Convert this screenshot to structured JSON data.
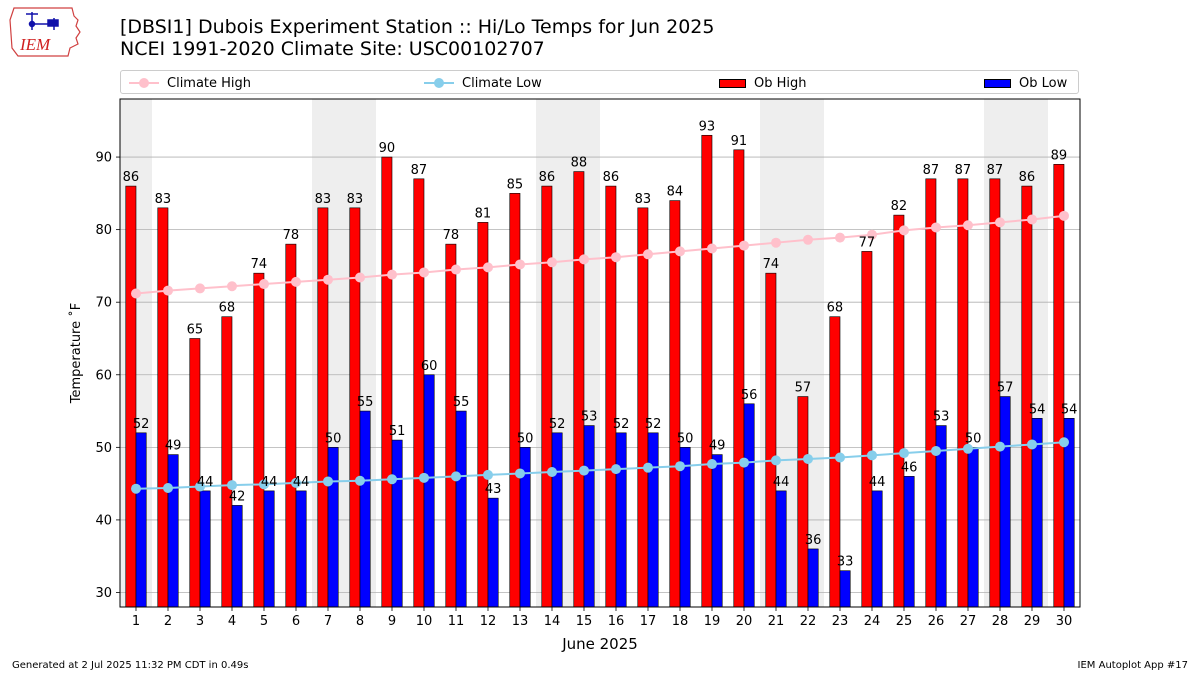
{
  "header": {
    "title_line1": "[DBSI1] Dubois Experiment Station :: Hi/Lo Temps for Jun 2025",
    "title_line2": "NCEI 1991-2020 Climate Site: USC00102707",
    "logo_text": "IEM"
  },
  "footer": {
    "left": "Generated at 2 Jul 2025 11:32 PM CDT in 0.49s",
    "right": "IEM Autoplot App #17"
  },
  "colors": {
    "ob_high": "#ff0000",
    "ob_low": "#0000ff",
    "climate_high": "#ffc0cb",
    "climate_low": "#87ceeb",
    "weekend_shade": "#eeeeee"
  },
  "chart_data": {
    "type": "bar",
    "xlabel": "June 2025",
    "ylabel": "Temperature $^\\circ$F",
    "ylabel_display": "Temperature ˚F",
    "ylim": [
      28,
      98
    ],
    "yticks": [
      30,
      40,
      50,
      60,
      70,
      80,
      90
    ],
    "grid": true,
    "legend_position": "top",
    "categories": [
      "1",
      "2",
      "3",
      "4",
      "5",
      "6",
      "7",
      "8",
      "9",
      "10",
      "11",
      "12",
      "13",
      "14",
      "15",
      "16",
      "17",
      "18",
      "19",
      "20",
      "21",
      "22",
      "23",
      "24",
      "25",
      "26",
      "27",
      "28",
      "29",
      "30"
    ],
    "weekend_days": [
      "1",
      "7",
      "8",
      "14",
      "15",
      "21",
      "22",
      "28",
      "29"
    ],
    "series": [
      {
        "name": "Ob High",
        "kind": "bar",
        "color": "#ff0000",
        "values": [
          86,
          83,
          65,
          68,
          74,
          78,
          83,
          83,
          90,
          87,
          78,
          81,
          85,
          86,
          88,
          86,
          83,
          84,
          93,
          91,
          74,
          57,
          68,
          77,
          82,
          87,
          87,
          87,
          86,
          89
        ]
      },
      {
        "name": "Ob Low",
        "kind": "bar",
        "color": "#0000ff",
        "values": [
          52,
          49,
          44,
          42,
          44,
          44,
          50,
          55,
          51,
          60,
          55,
          43,
          50,
          52,
          53,
          52,
          52,
          50,
          49,
          56,
          44,
          36,
          33,
          44,
          46,
          53,
          50,
          57,
          54,
          54
        ]
      },
      {
        "name": "Climate High",
        "kind": "line",
        "color": "#ffc0cb",
        "values": [
          71.2,
          71.6,
          71.9,
          72.2,
          72.5,
          72.8,
          73.1,
          73.4,
          73.8,
          74.1,
          74.5,
          74.8,
          75.2,
          75.5,
          75.9,
          76.2,
          76.6,
          77.0,
          77.4,
          77.8,
          78.2,
          78.6,
          78.9,
          79.3,
          79.9,
          80.3,
          80.6,
          81.0,
          81.4,
          81.9
        ]
      },
      {
        "name": "Climate Low",
        "kind": "line",
        "color": "#87ceeb",
        "values": [
          44.3,
          44.4,
          44.6,
          44.8,
          44.9,
          45.1,
          45.3,
          45.4,
          45.6,
          45.8,
          46.0,
          46.2,
          46.4,
          46.6,
          46.8,
          47.0,
          47.2,
          47.4,
          47.7,
          47.9,
          48.2,
          48.4,
          48.6,
          48.9,
          49.2,
          49.5,
          49.8,
          50.1,
          50.4,
          50.7
        ]
      }
    ]
  }
}
